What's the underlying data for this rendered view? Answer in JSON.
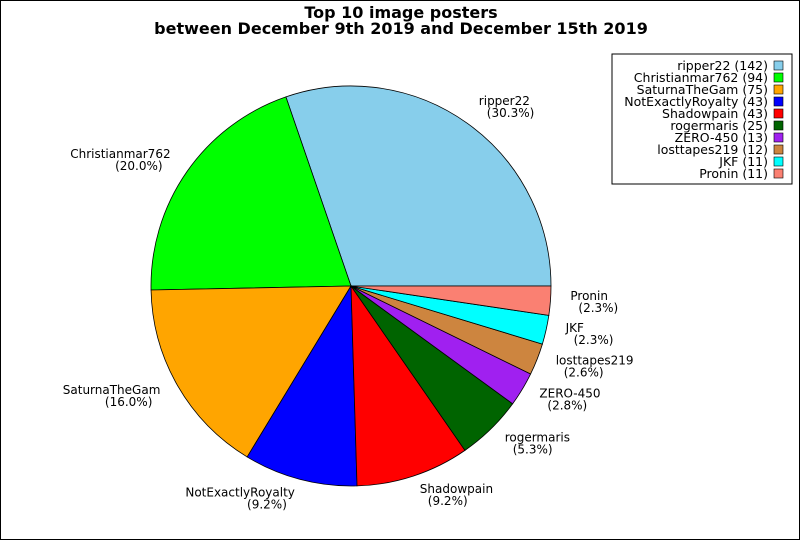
{
  "chart_data": {
    "type": "pie",
    "title": "Top 10 image posters",
    "subtitle": "between December 9th 2019 and December 15th 2019",
    "legend_position": "top-right",
    "slices": [
      {
        "name": "ripper22",
        "count": 142,
        "percent_label": "(30.3%)",
        "legend_label": "ripper22 (142)",
        "color": "#87ceeb"
      },
      {
        "name": "Christianmar762",
        "count": 94,
        "percent_label": "(20.0%)",
        "legend_label": "Christianmar762 (94)",
        "color": "#00ff00"
      },
      {
        "name": "SaturnaTheGam",
        "count": 75,
        "percent_label": "(16.0%)",
        "legend_label": "SaturnaTheGam (75)",
        "color": "#ffa500"
      },
      {
        "name": "NotExactlyRoyalty",
        "count": 43,
        "percent_label": "(9.2%)",
        "legend_label": "NotExactlyRoyalty (43)",
        "color": "#0000ff"
      },
      {
        "name": "Shadowpain",
        "count": 43,
        "percent_label": "(9.2%)",
        "legend_label": "Shadowpain (43)",
        "color": "#ff0000"
      },
      {
        "name": "rogermaris",
        "count": 25,
        "percent_label": "(5.3%)",
        "legend_label": "rogermaris (25)",
        "color": "#006400"
      },
      {
        "name": "ZERO-450",
        "count": 13,
        "percent_label": "(2.8%)",
        "legend_label": "ZERO-450 (13)",
        "color": "#a020f0"
      },
      {
        "name": "losttapes219",
        "count": 12,
        "percent_label": "(2.6%)",
        "legend_label": "losttapes219 (12)",
        "color": "#cd853f"
      },
      {
        "name": "JKF",
        "count": 11,
        "percent_label": "(2.3%)",
        "legend_label": "JKF (11)",
        "color": "#00ffff"
      },
      {
        "name": "Pronin",
        "count": 11,
        "percent_label": "(2.3%)",
        "legend_label": "Pronin (11)",
        "color": "#fa8072"
      }
    ]
  }
}
